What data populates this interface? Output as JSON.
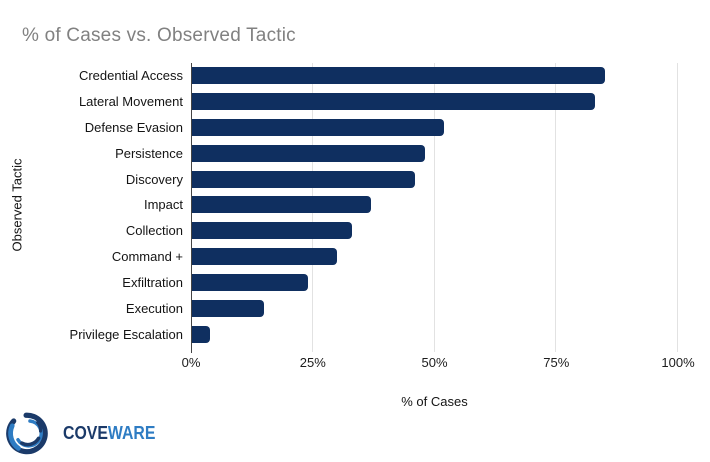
{
  "title": "% of Cases vs. Observed Tactic",
  "chart_data": {
    "type": "bar",
    "orientation": "horizontal",
    "title": "% of Cases vs. Observed Tactic",
    "categories": [
      "Credential Access",
      "Lateral Movement",
      "Defense Evasion",
      "Persistence",
      "Discovery",
      "Impact",
      "Collection",
      "Command +",
      "Exfiltration",
      "Execution",
      "Privilege Escalation"
    ],
    "values": [
      85,
      83,
      52,
      48,
      46,
      37,
      33,
      30,
      24,
      15,
      4
    ],
    "xlabel": "% of Cases",
    "ylabel": "Observed Tactic",
    "xlim": [
      0,
      100
    ],
    "xtick_labels": [
      "0%",
      "25%",
      "50%",
      "75%",
      "100%"
    ],
    "xtick_values": [
      0,
      25,
      50,
      75,
      100
    ],
    "grid": true,
    "legend": false,
    "bar_color": "#0f2f60"
  },
  "colors": {
    "background": "#ffffff",
    "title_text": "#818181",
    "bar": "#0f2f60",
    "gridline": "#e2e2e2",
    "axis_line": "#444444",
    "label_text": "#141414",
    "logo_navy": "#1b3a69",
    "logo_blue": "#2e7cc3"
  },
  "branding": {
    "logo_icon": "coveware-swirl-icon",
    "logo_text_primary": "COVE",
    "logo_text_secondary": "WARE"
  }
}
